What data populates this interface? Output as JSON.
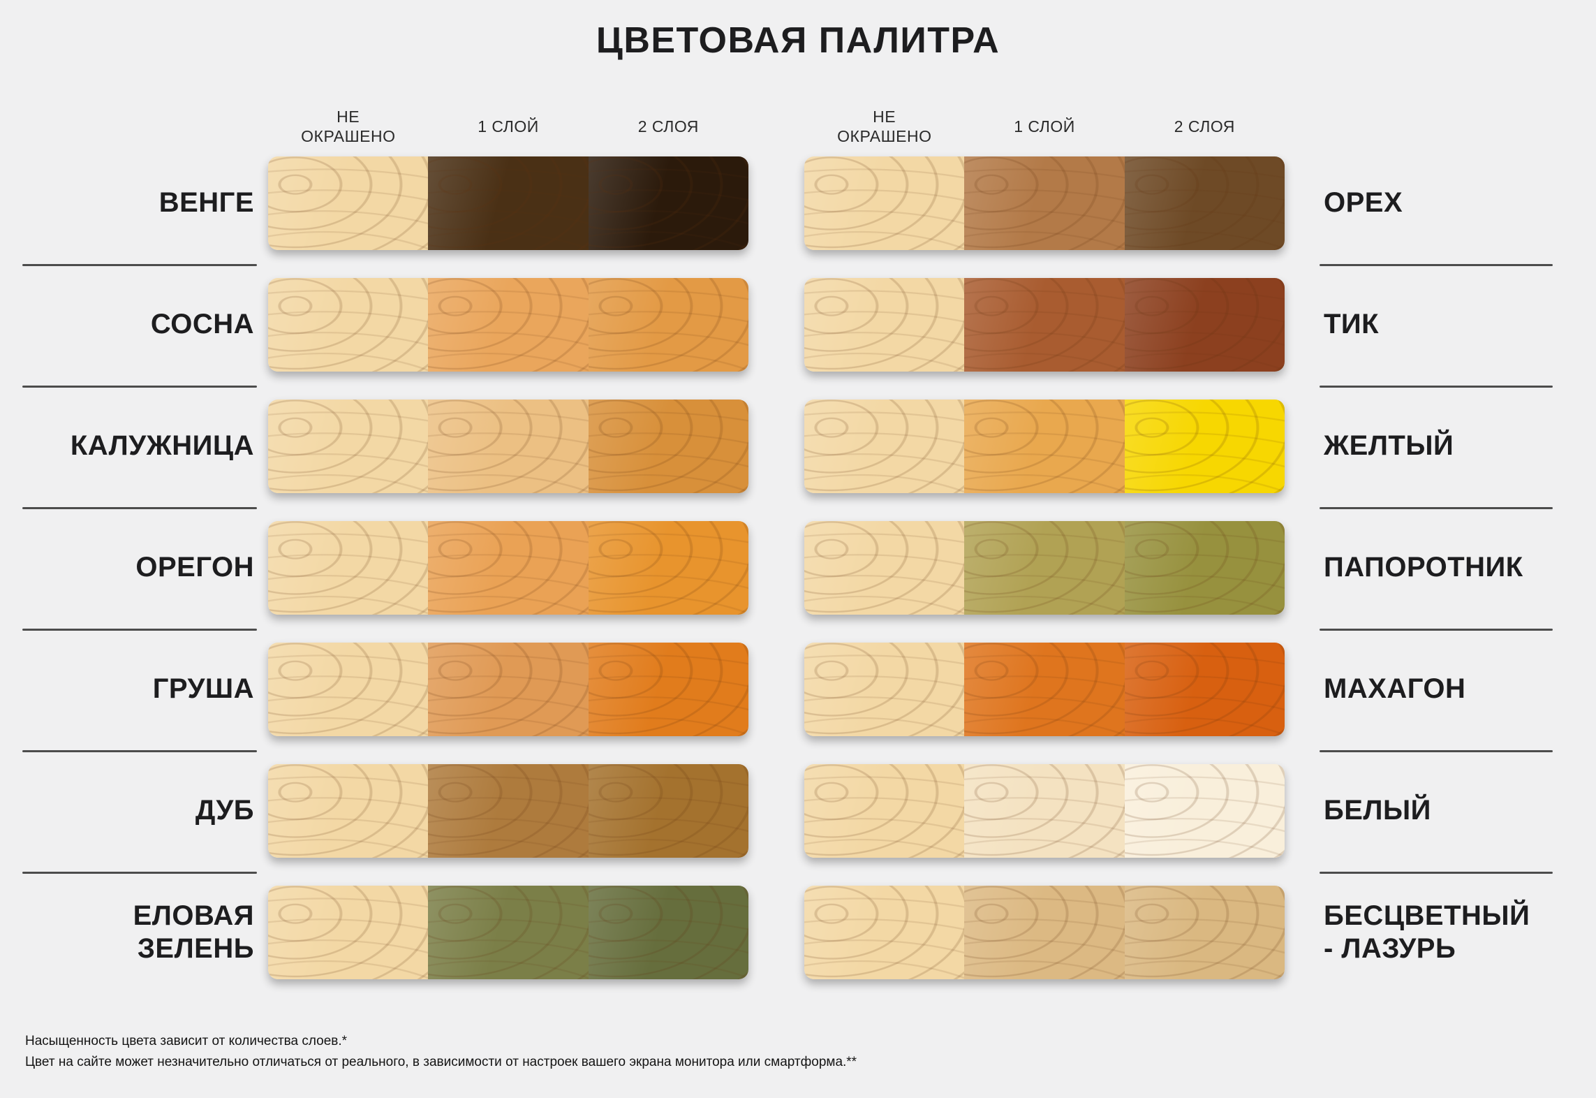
{
  "title": "ЦВЕТОВАЯ ПАЛИТРА",
  "background_color": "#f0f0f1",
  "text_color": "#1d1d1f",
  "divider_color": "#4c4c4c",
  "unpainted_wood_color": "#f3d8a5",
  "column_headers": [
    "НЕ ОКРАШЕНО",
    "1 СЛОЙ",
    "2 СЛОЯ"
  ],
  "rows": [
    {
      "left": {
        "name": "ВЕНГЕ",
        "coat1": "#4a3015",
        "coat2": "#2b1a0b"
      },
      "right": {
        "name": "ОРЕХ",
        "coat1": "#b37a48",
        "coat2": "#6e4a26"
      }
    },
    {
      "left": {
        "name": "СОСНА",
        "coat1": "#eaa65c",
        "coat2": "#e39a45"
      },
      "right": {
        "name": "ТИК",
        "coat1": "#a95c30",
        "coat2": "#8c401f"
      }
    },
    {
      "left": {
        "name": "КАЛУЖНИЦА",
        "coat1": "#ecc083",
        "coat2": "#d8903a"
      },
      "right": {
        "name": "ЖЕЛТЫЙ",
        "coat1": "#e9a84e",
        "coat2": "#f7d701"
      }
    },
    {
      "left": {
        "name": "ОРЕГОН",
        "coat1": "#eaa255",
        "coat2": "#e8942d"
      },
      "right": {
        "name": "ПАПОРОТНИК",
        "coat1": "#b1a254",
        "coat2": "#97913e"
      }
    },
    {
      "left": {
        "name": "ГРУША",
        "coat1": "#e09a55",
        "coat2": "#e17c1c"
      },
      "right": {
        "name": "МАХАГОН",
        "coat1": "#df751e",
        "coat2": "#d86010"
      }
    },
    {
      "left": {
        "name": "ДУБ",
        "coat1": "#ae7b3d",
        "coat2": "#a4722e"
      },
      "right": {
        "name": "БЕЛЫЙ",
        "coat1": "#f4e2c1",
        "coat2": "#f9efdb"
      }
    },
    {
      "left": {
        "name": "ЕЛОВАЯ ЗЕЛЕНЬ",
        "coat1": "#7b7f48",
        "coat2": "#666e3d"
      },
      "right": {
        "name": "БЕСЦВЕТНЫЙ - ЛАЗУРЬ",
        "coat1": "#dcb983",
        "coat2": "#dab881"
      }
    }
  ],
  "footnotes": [
    "Насыщенность цвета зависит от количества слоев.*",
    "Цвет на сайте может незначительно отличаться от реального, в зависимости от настроек вашего экрана монитора или смартформа.**"
  ]
}
